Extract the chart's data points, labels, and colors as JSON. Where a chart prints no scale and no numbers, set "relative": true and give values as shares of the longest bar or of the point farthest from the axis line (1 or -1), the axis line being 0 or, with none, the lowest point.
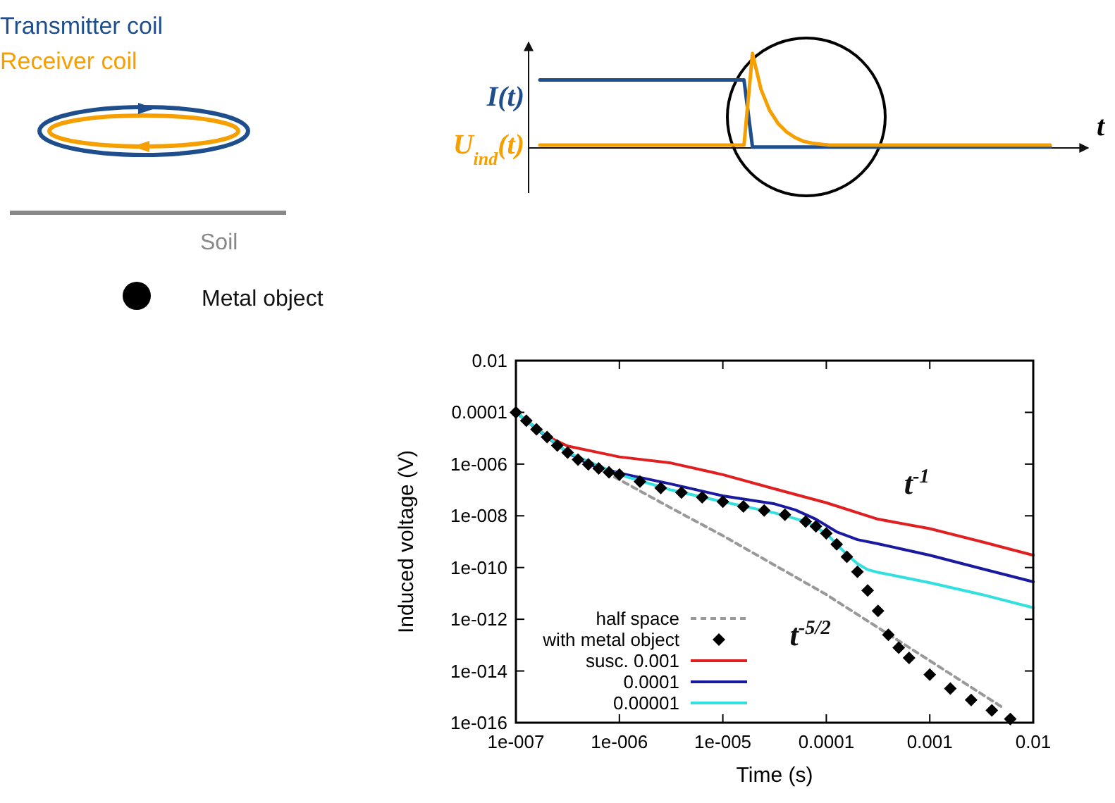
{
  "chart_data": [
    {
      "type": "line",
      "relative": true,
      "xlabel": "t",
      "categories": [
        null,
        null,
        null,
        null,
        null,
        null,
        null,
        null,
        null,
        null,
        null,
        null,
        null,
        null,
        null,
        null,
        null,
        null,
        null,
        null,
        null,
        null,
        null,
        null,
        null,
        null,
        null,
        null,
        null,
        null,
        null,
        null,
        null,
        null,
        null,
        null,
        null,
        null,
        null,
        null,
        null,
        null,
        null,
        null,
        null,
        null,
        null,
        null,
        null,
        null,
        null,
        null,
        null,
        null,
        null,
        null,
        null,
        null,
        null,
        null,
        null
      ],
      "series": [
        {
          "name": "I(t)",
          "color": "#1f4e8c",
          "values": [
            0.72,
            0.72,
            0.72,
            0.72,
            0.72,
            0.72,
            0.72,
            0.72,
            0.72,
            0.72,
            0.72,
            0.72,
            0.72,
            0.72,
            0.72,
            0.72,
            0.72,
            0.72,
            0.72,
            0.72,
            0.72,
            0.72,
            0.72,
            0.72,
            0.72,
            0.01,
            0.01,
            0.01,
            0.01,
            0.01,
            0.01,
            0.01,
            0.01,
            0.01,
            0.01,
            0.01,
            0.01,
            0.01,
            0.01,
            0.01,
            0.01,
            0.01,
            0.01,
            0.01,
            0.01,
            0.01,
            0.01,
            0.01,
            0.01,
            0.01,
            0.01,
            0.01,
            0.01,
            0.01,
            0.01,
            0.01,
            0.01,
            0.01,
            0.01,
            0.01,
            0.01
          ]
        },
        {
          "name": "U$_{ind}$(t)",
          "color": "#f5a000",
          "values": [
            0.03,
            0.03,
            0.03,
            0.03,
            0.03,
            0.03,
            0.03,
            0.03,
            0.03,
            0.03,
            0.03,
            0.03,
            0.03,
            0.03,
            0.03,
            0.03,
            0.03,
            0.03,
            0.03,
            0.03,
            0.03,
            0.03,
            0.03,
            0.03,
            0.03,
            1.0,
            0.62,
            0.4,
            0.26,
            0.17,
            0.11,
            0.07,
            0.05,
            0.04,
            0.03,
            0.03,
            0.03,
            0.03,
            0.03,
            0.03,
            0.03,
            0.03,
            0.03,
            0.03,
            0.03,
            0.03,
            0.03,
            0.03,
            0.03,
            0.03,
            0.03,
            0.03,
            0.03,
            0.03,
            0.03,
            0.03,
            0.03,
            0.03,
            0.03,
            0.03,
            0.03
          ]
        }
      ],
      "annotations": [
        "Transmitter coil",
        "Receiver coil",
        "Soil",
        "Metal object"
      ]
    },
    {
      "type": "line",
      "xlabel": "Time (s)",
      "ylabel": "Induced voltage (V)",
      "log": "xy",
      "grid": false,
      "legend": "bottom left",
      "xlim": [
        1e-07,
        0.01
      ],
      "ylim": [
        1e-16,
        0.01
      ],
      "xticks": [
        {
          "value": 1e-07,
          "label": "1e-007"
        },
        {
          "value": 1e-06,
          "label": "1e-006"
        },
        {
          "value": 1e-05,
          "label": "1e-005"
        },
        0.0001,
        0.001,
        0.01
      ],
      "yticks": [
        {
          "value": 1e-16,
          "label": "1e-016"
        },
        {
          "value": 1e-14,
          "label": "1e-014"
        },
        {
          "value": 1e-12,
          "label": "1e-012"
        },
        {
          "value": 1e-10,
          "label": "1e-010"
        },
        {
          "value": 1e-08,
          "label": "1e-008"
        },
        {
          "value": 1e-06,
          "label": "1e-006"
        },
        0.0001,
        0.01
      ],
      "series": [
        {
          "name": "half space",
          "line_style": "dashed",
          "color": "#999999",
          "x": [
            1e-07,
            3.16e-07,
            1e-06,
            3.16e-06,
            1e-05,
            0.0001,
            0.001,
            0.005
          ],
          "values": [
            0.0001,
            2.8e-06,
            2.5e-07,
            2e-08,
            1.7e-09,
            9e-12,
            2.5e-14,
            4e-16
          ]
        },
        {
          "name": "with metal object",
          "type": "scatter",
          "marker": "diamond",
          "color": "#000000",
          "x": [
            1e-07,
            1.26e-07,
            1.58e-07,
            2e-07,
            2.51e-07,
            3.16e-07,
            3.98e-07,
            5.01e-07,
            6.31e-07,
            7.94e-07,
            1e-06,
            1.58e-06,
            2.51e-06,
            3.98e-06,
            6.31e-06,
            1e-05,
            1.58e-05,
            2.51e-05,
            3.98e-05,
            6.31e-05,
            7.94e-05,
            0.0001,
            0.000126,
            0.000158,
            0.0002,
            0.000251,
            0.000316,
            0.000398,
            0.000501,
            0.000631,
            0.001,
            0.00158,
            0.00251,
            0.00398,
            0.006
          ],
          "values": [
            0.0001,
            4.8e-05,
            2.2e-05,
            1.1e-05,
            5.2e-06,
            2.8e-06,
            1.5e-06,
            9.8e-07,
            6.8e-07,
            4.8e-07,
            3.9e-07,
            2.1e-07,
            1.2e-07,
            7.9e-08,
            5.2e-08,
            3.5e-08,
            2.3e-08,
            1.6e-08,
            1.1e-08,
            6e-09,
            3.9e-09,
            2.1e-09,
            7.9e-10,
            2.6e-10,
            6.8e-11,
            1.3e-11,
            2.1e-12,
            2.5e-13,
            7.9e-14,
            3.2e-14,
            7.2e-15,
            2.1e-15,
            7.6e-16,
            3e-16,
            1.4e-16
          ]
        },
        {
          "name": "susc. 0.001",
          "color": "#e02020",
          "x": [
            1e-07,
            2e-07,
            3.16e-07,
            1e-06,
            3.16e-06,
            1e-05,
            3.16e-05,
            0.0001,
            0.000316,
            0.001,
            0.00316,
            0.01
          ],
          "values": [
            0.0001,
            1.2e-05,
            5e-06,
            1.9e-06,
            1.1e-06,
            3.9e-07,
            1.1e-07,
            3.2e-08,
            7.4e-09,
            3.2e-09,
            1e-09,
            3e-10
          ]
        },
        {
          "name": "0.0001",
          "color": "#1a1aa0",
          "x": [
            1e-07,
            2e-07,
            3.16e-07,
            5.01e-07,
            1e-06,
            3.16e-06,
            1e-05,
            3.16e-05,
            5.01e-05,
            7.94e-05,
            0.000126,
            0.0002,
            0.000316,
            0.001,
            0.00316,
            0.01
          ],
          "values": [
            0.0001,
            1.1e-05,
            2.8e-06,
            1e-06,
            4.5e-07,
            1.7e-07,
            5.9e-08,
            2.9e-08,
            1.7e-08,
            7.4e-09,
            2.4e-09,
            1.2e-09,
            8.3e-10,
            3e-10,
            9.1e-11,
            2.8e-11
          ]
        },
        {
          "name": "0.00001",
          "color": "#33e0e0",
          "x": [
            1e-07,
            3.16e-07,
            1e-06,
            3.16e-06,
            1e-05,
            3.16e-05,
            6.31e-05,
            0.0001,
            0.000126,
            0.000158,
            0.0002,
            0.000251,
            0.000316,
            0.001,
            0.00316,
            0.01
          ],
          "values": [
            0.0001,
            2.8e-06,
            3.9e-07,
            1e-07,
            3.5e-08,
            1.3e-08,
            6e-09,
            2.1e-09,
            7.9e-10,
            3.2e-10,
            1.4e-10,
            8.3e-11,
            6.5e-11,
            2.6e-11,
            9.1e-12,
            2.8e-12
          ]
        }
      ],
      "annotations": [
        "t$^{-1}$",
        "t$^{-5/2}$"
      ]
    }
  ]
}
